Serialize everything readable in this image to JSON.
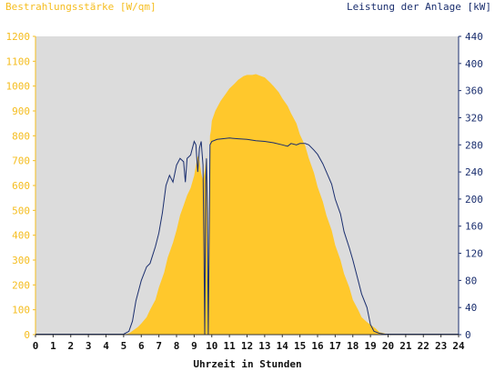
{
  "chart_data": {
    "type": "area",
    "ylabel_left": "Bestrahlungsstärke [W/qm]",
    "ylabel_right": "Leistung der Anlage [kW]",
    "xlabel": "Uhrzeit in Stunden",
    "xlim": [
      0,
      24
    ],
    "ylim_left": [
      0,
      1200
    ],
    "ylim_right": [
      0,
      440
    ],
    "x_ticks": [
      "0",
      "1",
      "2",
      "3",
      "4",
      "5",
      "6",
      "7",
      "8",
      "9",
      "10",
      "11",
      "12",
      "13",
      "14",
      "15",
      "16",
      "17",
      "18",
      "19",
      "20",
      "21",
      "22",
      "23",
      "24"
    ],
    "y_left_ticks": [
      "0",
      "100",
      "200",
      "300",
      "400",
      "500",
      "600",
      "700",
      "800",
      "900",
      "1000",
      "1100",
      "1200"
    ],
    "y_right_ticks": [
      "0",
      "40",
      "80",
      "120",
      "160",
      "200",
      "240",
      "280",
      "320",
      "360",
      "400",
      "440"
    ],
    "colors": {
      "irradiance": "#ffc82c",
      "power": "#1a2e6e",
      "plot_bg": "#dcdcdc",
      "left_axis_text": "#f5bd1f",
      "right_axis_text": "#1a2e6e"
    },
    "series": [
      {
        "name": "Bestrahlungsstärke [W/qm]",
        "axis": "left",
        "x": [
          5.0,
          5.3,
          5.5,
          5.8,
          6.0,
          6.3,
          6.5,
          6.8,
          7.0,
          7.3,
          7.5,
          7.8,
          8.0,
          8.2,
          8.4,
          8.6,
          8.8,
          9.0,
          9.1,
          9.2,
          9.3,
          9.4,
          9.5,
          9.6,
          9.7,
          9.75,
          9.8,
          9.85,
          9.9,
          9.95,
          10.0,
          10.2,
          10.5,
          10.8,
          11.0,
          11.3,
          11.5,
          11.8,
          12.0,
          12.3,
          12.5,
          12.8,
          13.0,
          13.3,
          13.5,
          13.8,
          14.0,
          14.3,
          14.5,
          14.8,
          15.0,
          15.3,
          15.5,
          15.8,
          16.0,
          16.3,
          16.5,
          16.8,
          17.0,
          17.3,
          17.5,
          17.8,
          18.0,
          18.3,
          18.5,
          18.8,
          19.0,
          19.3,
          19.5,
          19.8,
          20.0
        ],
        "values": [
          0,
          5,
          15,
          30,
          45,
          70,
          100,
          140,
          190,
          250,
          310,
          370,
          420,
          480,
          520,
          560,
          590,
          640,
          680,
          720,
          700,
          650,
          620,
          660,
          720,
          600,
          0,
          420,
          800,
          820,
          860,
          900,
          940,
          970,
          990,
          1010,
          1025,
          1040,
          1045,
          1045,
          1048,
          1040,
          1035,
          1015,
          1000,
          975,
          950,
          920,
          890,
          850,
          805,
          760,
          710,
          650,
          595,
          535,
          480,
          420,
          360,
          300,
          245,
          190,
          140,
          100,
          70,
          50,
          40,
          25,
          10,
          5,
          0
        ]
      },
      {
        "name": "Leistung der Anlage [kW]",
        "axis": "right",
        "x": [
          5.0,
          5.3,
          5.5,
          5.7,
          6.0,
          6.3,
          6.5,
          6.8,
          7.0,
          7.2,
          7.4,
          7.6,
          7.8,
          8.0,
          8.2,
          8.4,
          8.5,
          8.6,
          8.8,
          9.0,
          9.1,
          9.2,
          9.3,
          9.4,
          9.5,
          9.55,
          9.6,
          9.65,
          9.7,
          9.75,
          9.8,
          9.9,
          10.0,
          10.3,
          10.6,
          11.0,
          11.5,
          12.0,
          12.5,
          13.0,
          13.5,
          14.0,
          14.3,
          14.5,
          14.8,
          15.0,
          15.3,
          15.5,
          15.8,
          16.0,
          16.3,
          16.5,
          16.8,
          17.0,
          17.3,
          17.5,
          17.8,
          18.0,
          18.3,
          18.5,
          18.8,
          19.0,
          19.2,
          19.5,
          19.8,
          20.0,
          20.5,
          21.0,
          24.0
        ],
        "values": [
          0,
          5,
          20,
          50,
          80,
          100,
          105,
          130,
          150,
          180,
          220,
          235,
          225,
          250,
          260,
          255,
          225,
          260,
          265,
          285,
          280,
          240,
          275,
          285,
          250,
          145,
          0,
          220,
          260,
          180,
          0,
          280,
          285,
          288,
          289,
          290,
          289,
          288,
          286,
          285,
          283,
          280,
          278,
          282,
          280,
          282,
          282,
          280,
          272,
          266,
          252,
          240,
          222,
          200,
          178,
          152,
          128,
          110,
          80,
          60,
          40,
          15,
          5,
          2,
          0,
          0,
          0,
          0,
          0
        ]
      }
    ]
  }
}
